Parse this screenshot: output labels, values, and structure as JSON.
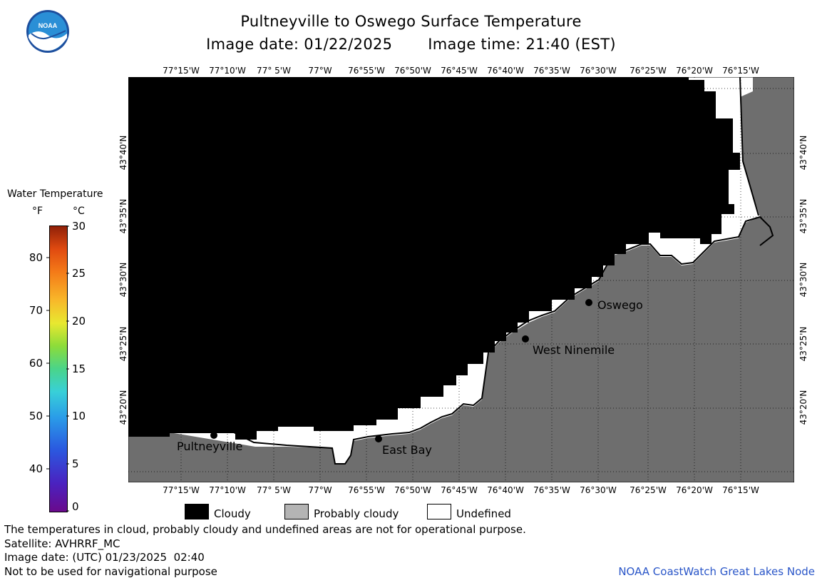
{
  "header": {
    "title": "Pultneyville to Oswego Surface Temperature",
    "subtitle_date": "Image date: 01/22/2025",
    "subtitle_time": "Image time: 21:40 (EST)"
  },
  "logo": {
    "text": "NOAA"
  },
  "map": {
    "lon_labels": [
      "77°15'W",
      "77°10'W",
      "77° 5'W",
      "77°W",
      "76°55'W",
      "76°50'W",
      "76°45'W",
      "76°40'W",
      "76°35'W",
      "76°30'W",
      "76°25'W",
      "76°20'W",
      "76°15'W"
    ],
    "lat_labels": [
      "43°40'N",
      "43°35'N",
      "43°30'N",
      "43°25'N",
      "43°20'N"
    ],
    "places": [
      {
        "name": "Pultneyville"
      },
      {
        "name": "East Bay"
      },
      {
        "name": "West Ninemile"
      },
      {
        "name": "Oswego"
      }
    ],
    "colors": {
      "cloudy": "#000000",
      "probably_cloudy": "#6e6e6e",
      "undefined": "#ffffff"
    }
  },
  "colorbar": {
    "title": "Water Temperature",
    "unit_f": "°F",
    "unit_c": "°C",
    "f_ticks": [
      "80",
      "70",
      "60",
      "50",
      "40"
    ],
    "c_ticks": [
      "30",
      "25",
      "20",
      "15",
      "10",
      "5",
      "0"
    ]
  },
  "legend": {
    "cloudy": "Cloudy",
    "probably_cloudy": "Probably cloudy",
    "undefined": "Undefined"
  },
  "footer": {
    "note": "The temperatures in cloud, probably cloudy and undefined areas are not for operational purpose.",
    "satellite": "Satellite: AVHRRF_MC",
    "utc_date": "Image date: (UTC) 01/23/2025  02:40",
    "nav_warning": "Not to be used for navigational purpose",
    "credit": "NOAA CoastWatch Great Lakes Node"
  }
}
